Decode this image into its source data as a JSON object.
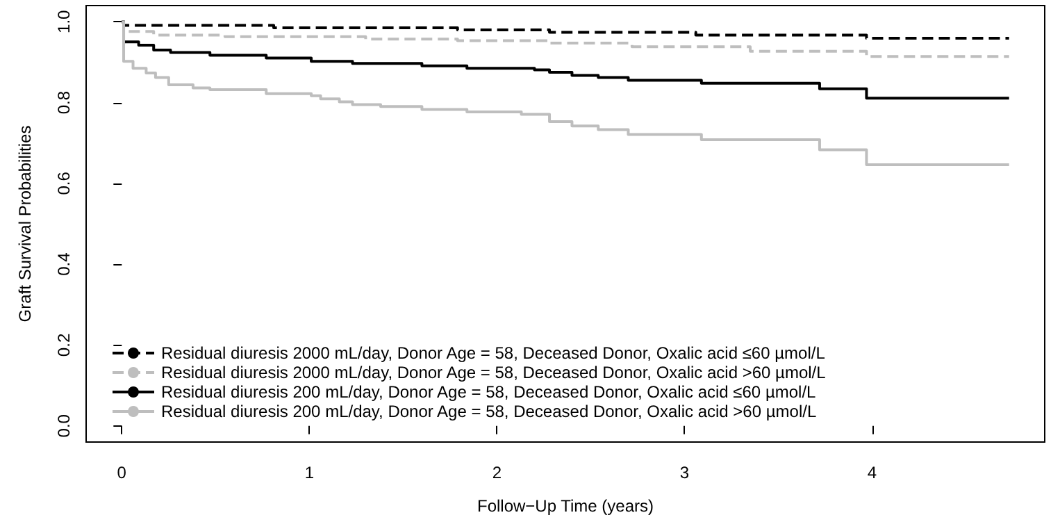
{
  "chart_data": {
    "type": "step",
    "xlabel": "Follow−Up Time (years)",
    "ylabel": "Graft Survival Probabilities",
    "xlim": [
      -0.19,
      4.92
    ],
    "ylim": [
      -0.04,
      1.04
    ],
    "xticks": [
      0,
      1,
      2,
      3,
      4
    ],
    "yticks": [
      {
        "value": 0,
        "label": "0.0"
      },
      {
        "value": 0.2,
        "label": "0.2"
      },
      {
        "value": 0.4,
        "label": "0.4"
      },
      {
        "value": 0.6,
        "label": "0.6"
      },
      {
        "value": 0.8,
        "label": "0.8"
      },
      {
        "value": 1,
        "label": "1.0"
      }
    ],
    "grid": false,
    "legend": "bottom left",
    "marker": "none",
    "series": [
      {
        "name": "Residual diuresis 2000 mL/day, Donor Age = 58, Deceased Donor, Oxalic acid ≤60 µmol/L",
        "color": "#000000",
        "line_style": "dashed",
        "x": [
          0,
          0.01,
          0.81,
          1.79,
          2.28,
          3.06,
          3.97,
          4.73
        ],
        "values": [
          1,
          0.991,
          0.985,
          0.98,
          0.974,
          0.967,
          0.959,
          0.959
        ]
      },
      {
        "name": "Residual diuresis 2000 mL/day, Donor Age = 58, Deceased Donor, Oxalic acid >60 µmol/L",
        "color": "#bebebe",
        "line_style": "dashed",
        "x": [
          0,
          0.01,
          0.17,
          0.55,
          1.3,
          1.79,
          2.28,
          2.72,
          3.35,
          3.97,
          4.73
        ],
        "values": [
          1,
          0.976,
          0.967,
          0.963,
          0.957,
          0.953,
          0.947,
          0.938,
          0.927,
          0.914,
          0.914
        ]
      },
      {
        "name": "Residual diuresis 200 mL/day, Donor Age = 58, Deceased Donor, Oxalic acid ≤60 µmol/L",
        "color": "#000000",
        "line_style": "solid",
        "x": [
          0,
          0.01,
          0.09,
          0.17,
          0.26,
          0.47,
          0.77,
          1.01,
          1.23,
          1.6,
          1.84,
          2.2,
          2.28,
          2.4,
          2.54,
          2.7,
          3.09,
          3.72,
          3.97,
          4.73
        ],
        "values": [
          1,
          0.95,
          0.942,
          0.93,
          0.924,
          0.917,
          0.91,
          0.902,
          0.897,
          0.891,
          0.885,
          0.881,
          0.875,
          0.867,
          0.862,
          0.855,
          0.848,
          0.834,
          0.811,
          0.811
        ]
      },
      {
        "name": "Residual diuresis 200 mL/day, Donor Age = 58, Deceased Donor, Oxalic acid >60 µmol/L",
        "color": "#bebebe",
        "line_style": "solid",
        "x": [
          0,
          0.01,
          0.06,
          0.13,
          0.18,
          0.25,
          0.38,
          0.47,
          0.77,
          1.01,
          1.06,
          1.16,
          1.23,
          1.38,
          1.6,
          1.84,
          2.13,
          2.28,
          2.4,
          2.54,
          2.7,
          3.09,
          3.72,
          3.97,
          4.73
        ],
        "values": [
          1,
          0.902,
          0.885,
          0.873,
          0.862,
          0.844,
          0.836,
          0.832,
          0.822,
          0.817,
          0.809,
          0.802,
          0.795,
          0.79,
          0.783,
          0.777,
          0.771,
          0.753,
          0.742,
          0.733,
          0.721,
          0.708,
          0.683,
          0.646,
          0.646
        ]
      }
    ]
  }
}
